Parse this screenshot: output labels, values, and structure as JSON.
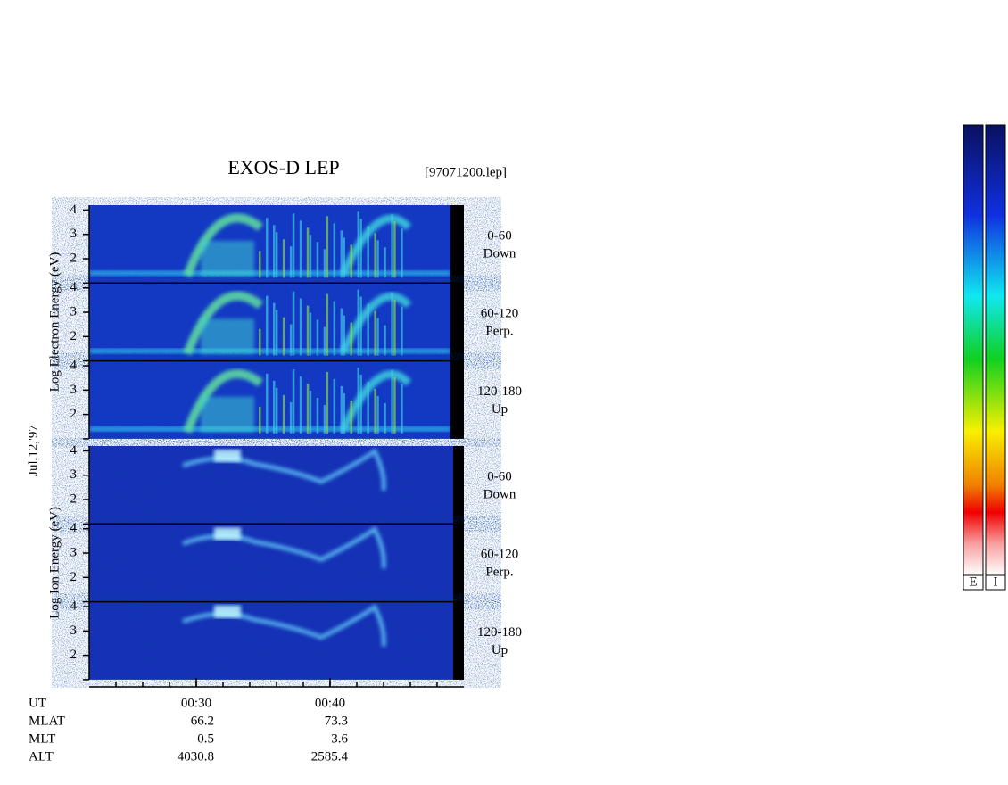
{
  "title": "EXOS-D LEP",
  "file": "[97071200.lep]",
  "date": "Jul.12,'97",
  "groups": [
    {
      "y_label": "Log Electron Energy (eV)",
      "ylim": [
        1,
        4.2
      ],
      "yticks": [
        2,
        3,
        4
      ]
    },
    {
      "y_label": "Log Ion Energy (eV)",
      "ylim": [
        1,
        4.2
      ],
      "yticks": [
        2,
        3,
        4
      ]
    }
  ],
  "pitch_angles": [
    {
      "range": "0-60",
      "direction": "Down"
    },
    {
      "range": "60-120",
      "direction": "Perp."
    },
    {
      "range": "120-180",
      "direction": "Up"
    }
  ],
  "x_axis": {
    "xlim": [
      22,
      50
    ],
    "xticks": [
      {
        "value": 30,
        "label": "00:30"
      },
      {
        "value": 40,
        "label": "00:40"
      }
    ],
    "minor_ticks": [
      24,
      26,
      28,
      30,
      32,
      34,
      36,
      38,
      40,
      42,
      44,
      46,
      48
    ]
  },
  "ephemeris": {
    "labels": [
      "UT",
      "MLAT",
      "MLT",
      "ALT"
    ],
    "rows": [
      {
        "name": "MLAT",
        "values": [
          66.2,
          73.3
        ]
      },
      {
        "name": "MLT",
        "values": [
          0.5,
          3.6
        ]
      },
      {
        "name": "ALT",
        "values": [
          4030.8,
          2585.4
        ]
      }
    ]
  },
  "colorbars": [
    "E",
    "I"
  ]
}
